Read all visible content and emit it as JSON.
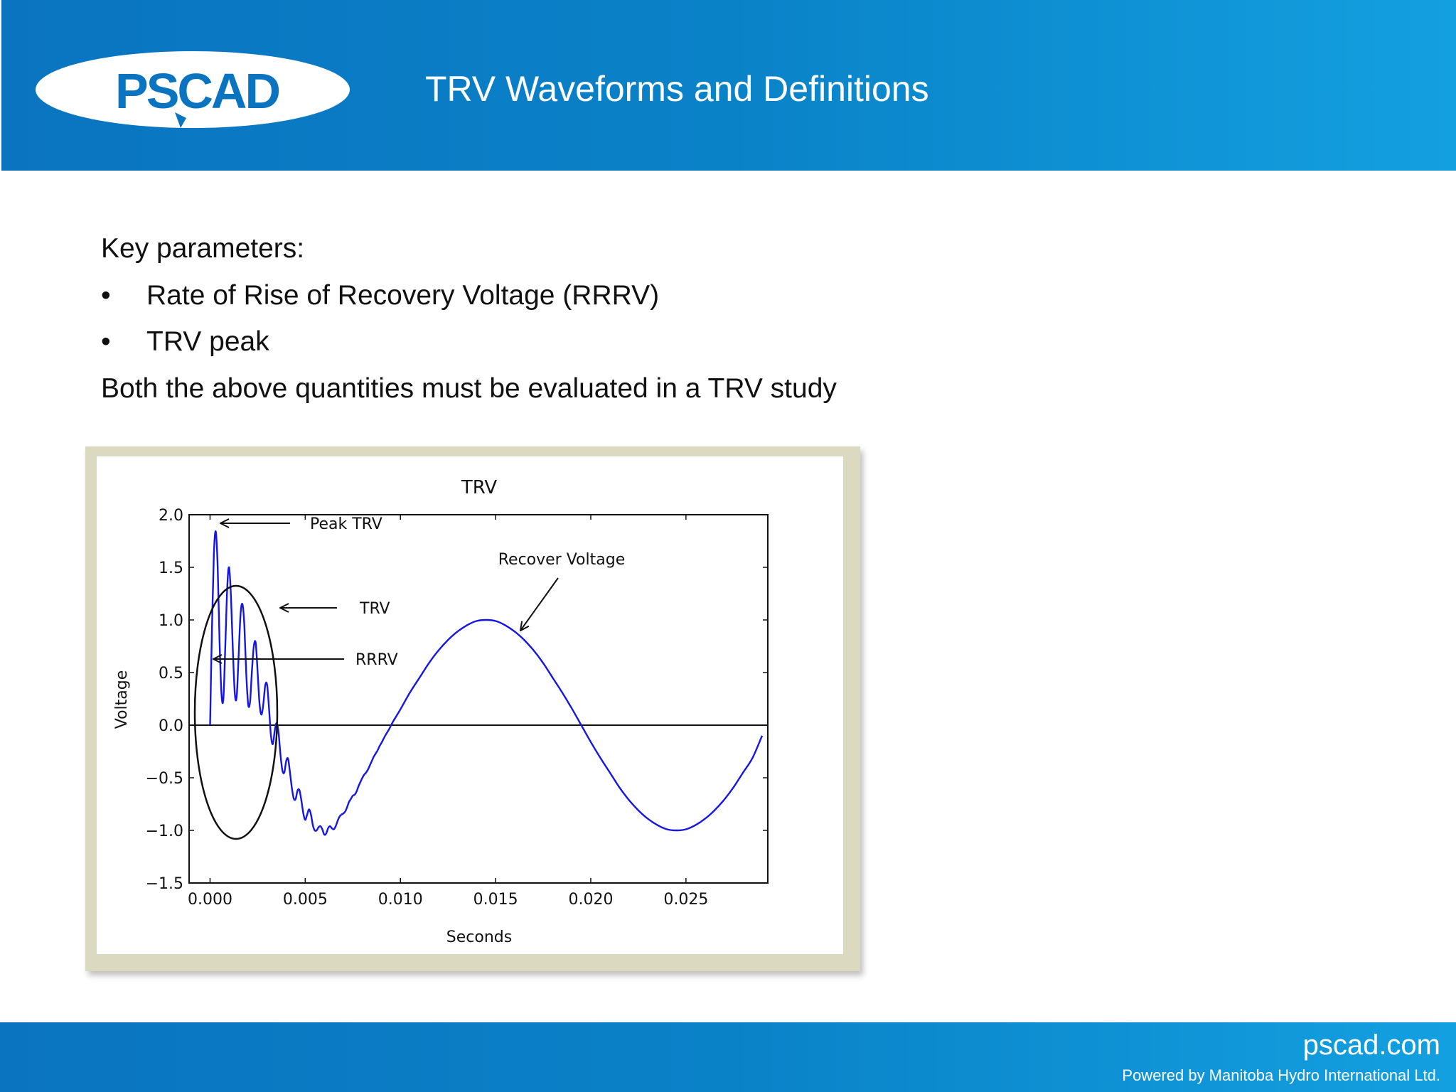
{
  "slide": {
    "logo_text": "PSCAD",
    "title": "TRV Waveforms and Definitions"
  },
  "content": {
    "intro": "Key parameters:",
    "bullets": [
      "Rate of Rise of Recovery Voltage (RRRV)",
      "TRV peak"
    ],
    "bullet_symbol": "•",
    "conclusion": "Both the above quantities must be evaluated in a TRV study"
  },
  "footer": {
    "site": "pscad.com",
    "powered_by": "Powered by Manitoba Hydro International Ltd."
  },
  "colors": {
    "header_blue": "#0a82c8",
    "waveform": "#1515e6",
    "frame": "#dcd9c1"
  },
  "chart_data": {
    "type": "line",
    "title": "TRV",
    "xlabel": "Seconds",
    "ylabel": "Voltage",
    "xlim": [
      -0.0011,
      0.0293
    ],
    "ylim": [
      -1.5,
      2.0
    ],
    "xticks": [
      "0.000",
      "0.005",
      "0.010",
      "0.015",
      "0.020",
      "0.025"
    ],
    "xtick_values": [
      0,
      0.005,
      0.01,
      0.015,
      0.02,
      0.025
    ],
    "yticks": [
      "2.0",
      "1.5",
      "1.0",
      "0.5",
      "0.0",
      "−0.5",
      "−1.0",
      "−1.5"
    ],
    "ytick_values": [
      2.0,
      1.5,
      1.0,
      0.5,
      0.0,
      -0.5,
      -1.0,
      -1.5
    ],
    "grid": false,
    "zero_line": true,
    "series": [
      {
        "style": "blue-line",
        "x": [
          0,
          0.0001,
          0.0002,
          0.0003,
          0.0004,
          0.0005,
          0.0006,
          0.0007,
          0.0008,
          0.0009,
          0.001,
          0.0011,
          0.0012,
          0.0013,
          0.0014,
          0.0015,
          0.0016,
          0.0017,
          0.0018,
          0.0019,
          0.002,
          0.0021,
          0.0022,
          0.0023,
          0.0024,
          0.0025,
          0.0026,
          0.0027,
          0.0028,
          0.0029,
          0.003,
          0.0031,
          0.0032,
          0.0033,
          0.0034,
          0.0035,
          0.0036,
          0.0037,
          0.0038,
          0.0039,
          0.004,
          0.0041,
          0.0042,
          0.0043,
          0.0044,
          0.0045,
          0.0046,
          0.0047,
          0.0048,
          0.0049,
          0.005,
          0.0051,
          0.0052,
          0.0053,
          0.0054,
          0.0055,
          0.0056,
          0.0057,
          0.0058,
          0.0059,
          0.006,
          0.0061,
          0.0062,
          0.0063,
          0.0064,
          0.0065,
          0.0066,
          0.0067,
          0.0068,
          0.0069,
          0.007,
          0.0071,
          0.0072,
          0.0073,
          0.0074,
          0.0075,
          0.0076,
          0.0077,
          0.0078,
          0.0079,
          0.008,
          0.0081,
          0.0082,
          0.0083,
          0.0084,
          0.0085,
          0.0086,
          0.0087,
          0.0088,
          0.0089,
          0.009,
          0.0092,
          0.0094,
          0.0096,
          0.0098,
          0.01,
          0.0105,
          0.011,
          0.0115,
          0.012,
          0.0125,
          0.013,
          0.0135,
          0.014,
          0.0145,
          0.015,
          0.0155,
          0.016,
          0.0165,
          0.017,
          0.0175,
          0.018,
          0.0185,
          0.019,
          0.0195,
          0.02,
          0.0205,
          0.021,
          0.0215,
          0.022,
          0.0225,
          0.023,
          0.0235,
          0.024,
          0.0245,
          0.025,
          0.0255,
          0.026,
          0.0265,
          0.027,
          0.0275,
          0.028,
          0.0285,
          0.029
        ],
        "y": [
          0.0,
          0.9,
          1.62,
          1.84,
          1.5,
          0.8,
          0.3,
          0.25,
          0.75,
          1.3,
          1.5,
          1.22,
          0.7,
          0.3,
          0.27,
          0.65,
          1.05,
          1.15,
          0.95,
          0.5,
          0.2,
          0.22,
          0.52,
          0.75,
          0.78,
          0.5,
          0.2,
          0.1,
          0.2,
          0.38,
          0.38,
          0.15,
          -0.1,
          -0.18,
          -0.05,
          0.02,
          -0.07,
          -0.28,
          -0.43,
          -0.45,
          -0.34,
          -0.32,
          -0.45,
          -0.6,
          -0.7,
          -0.7,
          -0.62,
          -0.62,
          -0.72,
          -0.84,
          -0.9,
          -0.85,
          -0.8,
          -0.85,
          -0.95,
          -1.0,
          -1.0,
          -0.97,
          -0.96,
          -0.99,
          -1.04,
          -1.03,
          -0.98,
          -0.96,
          -0.98,
          -0.99,
          -0.96,
          -0.91,
          -0.87,
          -0.85,
          -0.84,
          -0.82,
          -0.78,
          -0.73,
          -0.7,
          -0.67,
          -0.66,
          -0.63,
          -0.58,
          -0.54,
          -0.5,
          -0.47,
          -0.45,
          -0.42,
          -0.38,
          -0.34,
          -0.3,
          -0.27,
          -0.24,
          -0.2,
          -0.17,
          -0.1,
          -0.04,
          0.03,
          0.09,
          0.15,
          0.31,
          0.45,
          0.59,
          0.71,
          0.81,
          0.89,
          0.95,
          0.99,
          1.0,
          0.99,
          0.95,
          0.89,
          0.81,
          0.71,
          0.59,
          0.45,
          0.31,
          0.16,
          0.0,
          -0.16,
          -0.31,
          -0.45,
          -0.59,
          -0.71,
          -0.81,
          -0.89,
          -0.95,
          -0.99,
          -1.0,
          -0.99,
          -0.95,
          -0.89,
          -0.81,
          -0.71,
          -0.59,
          -0.45,
          -0.31,
          -0.1
        ]
      }
    ],
    "annotations": [
      {
        "text": "Peak TRV"
      },
      {
        "text": "TRV"
      },
      {
        "text": "RRRV"
      },
      {
        "text": "Recover Voltage"
      }
    ]
  }
}
